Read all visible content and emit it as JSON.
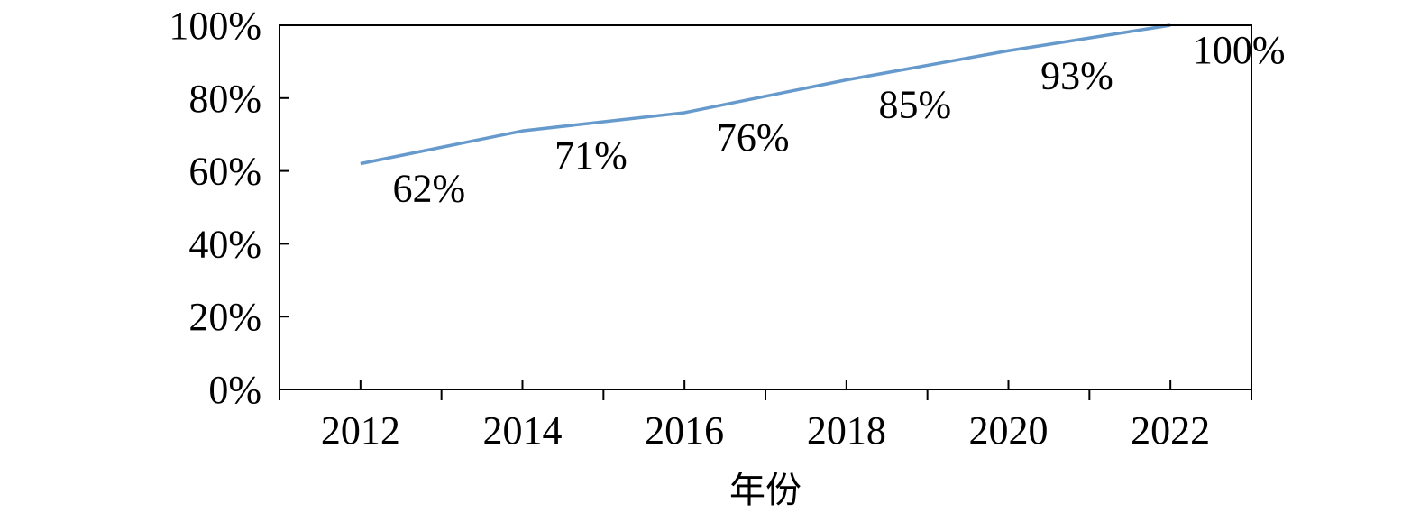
{
  "chart_data": {
    "type": "line",
    "categories": [
      "2012",
      "2014",
      "2016",
      "2018",
      "2020",
      "2022"
    ],
    "series": [
      {
        "values": [
          62,
          71,
          76,
          85,
          93,
          100
        ],
        "color": "#6699CC"
      }
    ],
    "data_labels": [
      "62%",
      "71%",
      "76%",
      "85%",
      "93%",
      "100%"
    ],
    "y_ticks": [
      "0%",
      "20%",
      "40%",
      "60%",
      "80%",
      "100%"
    ],
    "ylim": [
      0,
      100
    ],
    "xlabel": "年份",
    "ylabel": "",
    "title": "",
    "grid": false
  }
}
